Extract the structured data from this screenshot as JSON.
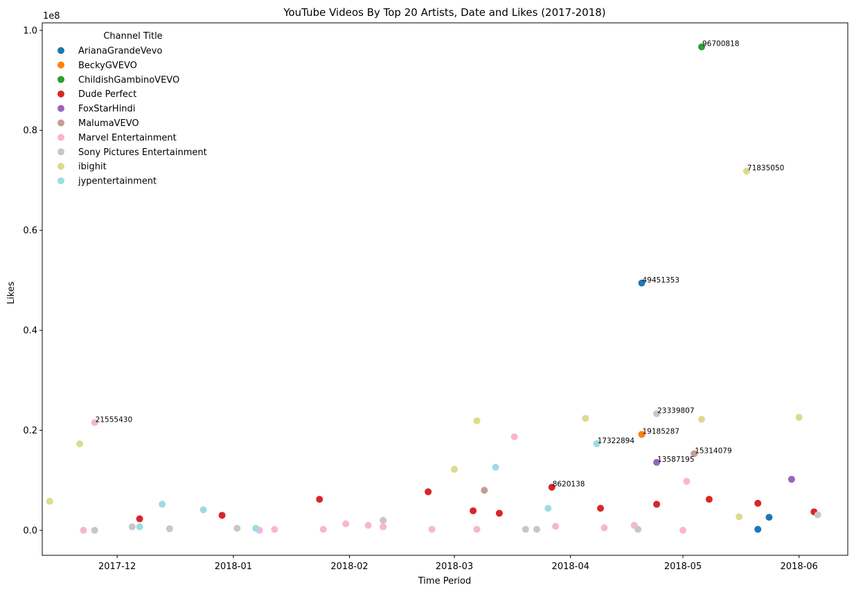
{
  "chart_data": {
    "type": "scatter",
    "title": "YouTube Videos By Top 20 Artists, Date and Likes (2017-2018)",
    "xlabel": "Time Period",
    "ylabel": "Likes",
    "y_offset_label": "1e8",
    "xlim": [
      "2017-11-11",
      "2018-06-14"
    ],
    "ylim": [
      -5000000,
      101500000
    ],
    "x_ticks": [
      {
        "value": "2017-12-01",
        "label": "2017-12"
      },
      {
        "value": "2018-01-01",
        "label": "2018-01"
      },
      {
        "value": "2018-02-01",
        "label": "2018-02"
      },
      {
        "value": "2018-03-01",
        "label": "2018-03"
      },
      {
        "value": "2018-04-01",
        "label": "2018-04"
      },
      {
        "value": "2018-05-01",
        "label": "2018-05"
      },
      {
        "value": "2018-06-01",
        "label": "2018-06"
      }
    ],
    "y_ticks": [
      {
        "value": 0,
        "label": "0.0"
      },
      {
        "value": 20000000,
        "label": "0.2"
      },
      {
        "value": 40000000,
        "label": "0.4"
      },
      {
        "value": 60000000,
        "label": "0.6"
      },
      {
        "value": 80000000,
        "label": "0.8"
      },
      {
        "value": 100000000,
        "label": "1.0"
      }
    ],
    "grid": false,
    "legend": {
      "title": "Channel Title",
      "placement": "upper-left"
    },
    "series": [
      {
        "name": "ArianaGrandeVevo",
        "color": "#1f77b4",
        "points": [
          {
            "x": "2018-04-20",
            "y": 49451353,
            "label": "49451353"
          },
          {
            "x": "2018-05-21",
            "y": 200000
          },
          {
            "x": "2018-05-24",
            "y": 2600000
          }
        ]
      },
      {
        "name": "BeckyGVEVO",
        "color": "#ff7f0e",
        "points": [
          {
            "x": "2018-04-20",
            "y": 19185287,
            "label": "19185287"
          }
        ]
      },
      {
        "name": "ChildishGambinoVEVO",
        "color": "#2ca02c",
        "points": [
          {
            "x": "2018-05-06",
            "y": 96700818,
            "label": "96700818"
          }
        ]
      },
      {
        "name": "Dude Perfect",
        "color": "#d62728",
        "points": [
          {
            "x": "2017-12-07",
            "y": 2300000
          },
          {
            "x": "2017-12-29",
            "y": 3000000
          },
          {
            "x": "2018-01-24",
            "y": 6200000
          },
          {
            "x": "2018-02-22",
            "y": 7700000
          },
          {
            "x": "2018-03-06",
            "y": 3900000
          },
          {
            "x": "2018-03-13",
            "y": 3400000
          },
          {
            "x": "2018-03-27",
            "y": 8620138,
            "label": "8620138"
          },
          {
            "x": "2018-04-09",
            "y": 4400000
          },
          {
            "x": "2018-04-24",
            "y": 5200000
          },
          {
            "x": "2018-05-08",
            "y": 6200000
          },
          {
            "x": "2018-05-21",
            "y": 5400000
          },
          {
            "x": "2018-06-05",
            "y": 3700000
          }
        ]
      },
      {
        "name": "FoxStarHindi",
        "color": "#9467bd",
        "points": [
          {
            "x": "2018-04-24",
            "y": 13587195,
            "label": "13587195"
          },
          {
            "x": "2018-05-30",
            "y": 10200000
          }
        ]
      },
      {
        "name": "MalumaVEVO",
        "color": "#c49c94",
        "points": [
          {
            "x": "2018-03-09",
            "y": 8000000
          },
          {
            "x": "2018-05-04",
            "y": 15314079,
            "label": "15314079"
          }
        ]
      },
      {
        "name": "Marvel Entertainment",
        "color": "#f7b6d2",
        "points": [
          {
            "x": "2017-11-25",
            "y": 21555430,
            "label": "21555430"
          },
          {
            "x": "2017-11-22",
            "y": 0
          },
          {
            "x": "2018-01-08",
            "y": 0
          },
          {
            "x": "2018-01-12",
            "y": 200000
          },
          {
            "x": "2018-01-25",
            "y": 200000
          },
          {
            "x": "2018-01-31",
            "y": 1300000
          },
          {
            "x": "2018-02-06",
            "y": 1000000
          },
          {
            "x": "2018-02-10",
            "y": 700000
          },
          {
            "x": "2018-02-23",
            "y": 200000
          },
          {
            "x": "2018-03-07",
            "y": 200000
          },
          {
            "x": "2018-03-17",
            "y": 18700000
          },
          {
            "x": "2018-03-28",
            "y": 800000
          },
          {
            "x": "2018-04-10",
            "y": 500000
          },
          {
            "x": "2018-04-18",
            "y": 1000000
          },
          {
            "x": "2018-05-01",
            "y": 0
          },
          {
            "x": "2018-05-02",
            "y": 9800000
          }
        ]
      },
      {
        "name": "Sony Pictures Entertainment",
        "color": "#c7c7c7",
        "points": [
          {
            "x": "2017-11-25",
            "y": 0
          },
          {
            "x": "2017-12-05",
            "y": 700000
          },
          {
            "x": "2017-12-15",
            "y": 300000
          },
          {
            "x": "2018-01-02",
            "y": 400000
          },
          {
            "x": "2018-02-10",
            "y": 2000000
          },
          {
            "x": "2018-03-20",
            "y": 200000
          },
          {
            "x": "2018-03-23",
            "y": 200000
          },
          {
            "x": "2018-04-19",
            "y": 200000
          },
          {
            "x": "2018-04-24",
            "y": 23339807,
            "label": "23339807"
          },
          {
            "x": "2018-06-06",
            "y": 3100000
          }
        ]
      },
      {
        "name": "ibighit",
        "color": "#dbdb8d",
        "points": [
          {
            "x": "2017-11-13",
            "y": 5800000
          },
          {
            "x": "2017-11-21",
            "y": 17300000
          },
          {
            "x": "2018-03-01",
            "y": 12200000
          },
          {
            "x": "2018-03-07",
            "y": 21900000
          },
          {
            "x": "2018-04-05",
            "y": 22400000
          },
          {
            "x": "2018-05-06",
            "y": 22200000
          },
          {
            "x": "2018-05-18",
            "y": 71835050,
            "label": "71835050"
          },
          {
            "x": "2018-05-16",
            "y": 2700000
          },
          {
            "x": "2018-06-01",
            "y": 22600000
          }
        ]
      },
      {
        "name": "jypentertainment",
        "color": "#9edae5",
        "points": [
          {
            "x": "2017-12-07",
            "y": 700000
          },
          {
            "x": "2017-12-13",
            "y": 5200000
          },
          {
            "x": "2017-12-24",
            "y": 4100000
          },
          {
            "x": "2018-01-07",
            "y": 400000
          },
          {
            "x": "2018-03-12",
            "y": 12600000
          },
          {
            "x": "2018-03-26",
            "y": 4400000
          },
          {
            "x": "2018-04-08",
            "y": 17322894,
            "label": "17322894"
          }
        ]
      }
    ]
  }
}
